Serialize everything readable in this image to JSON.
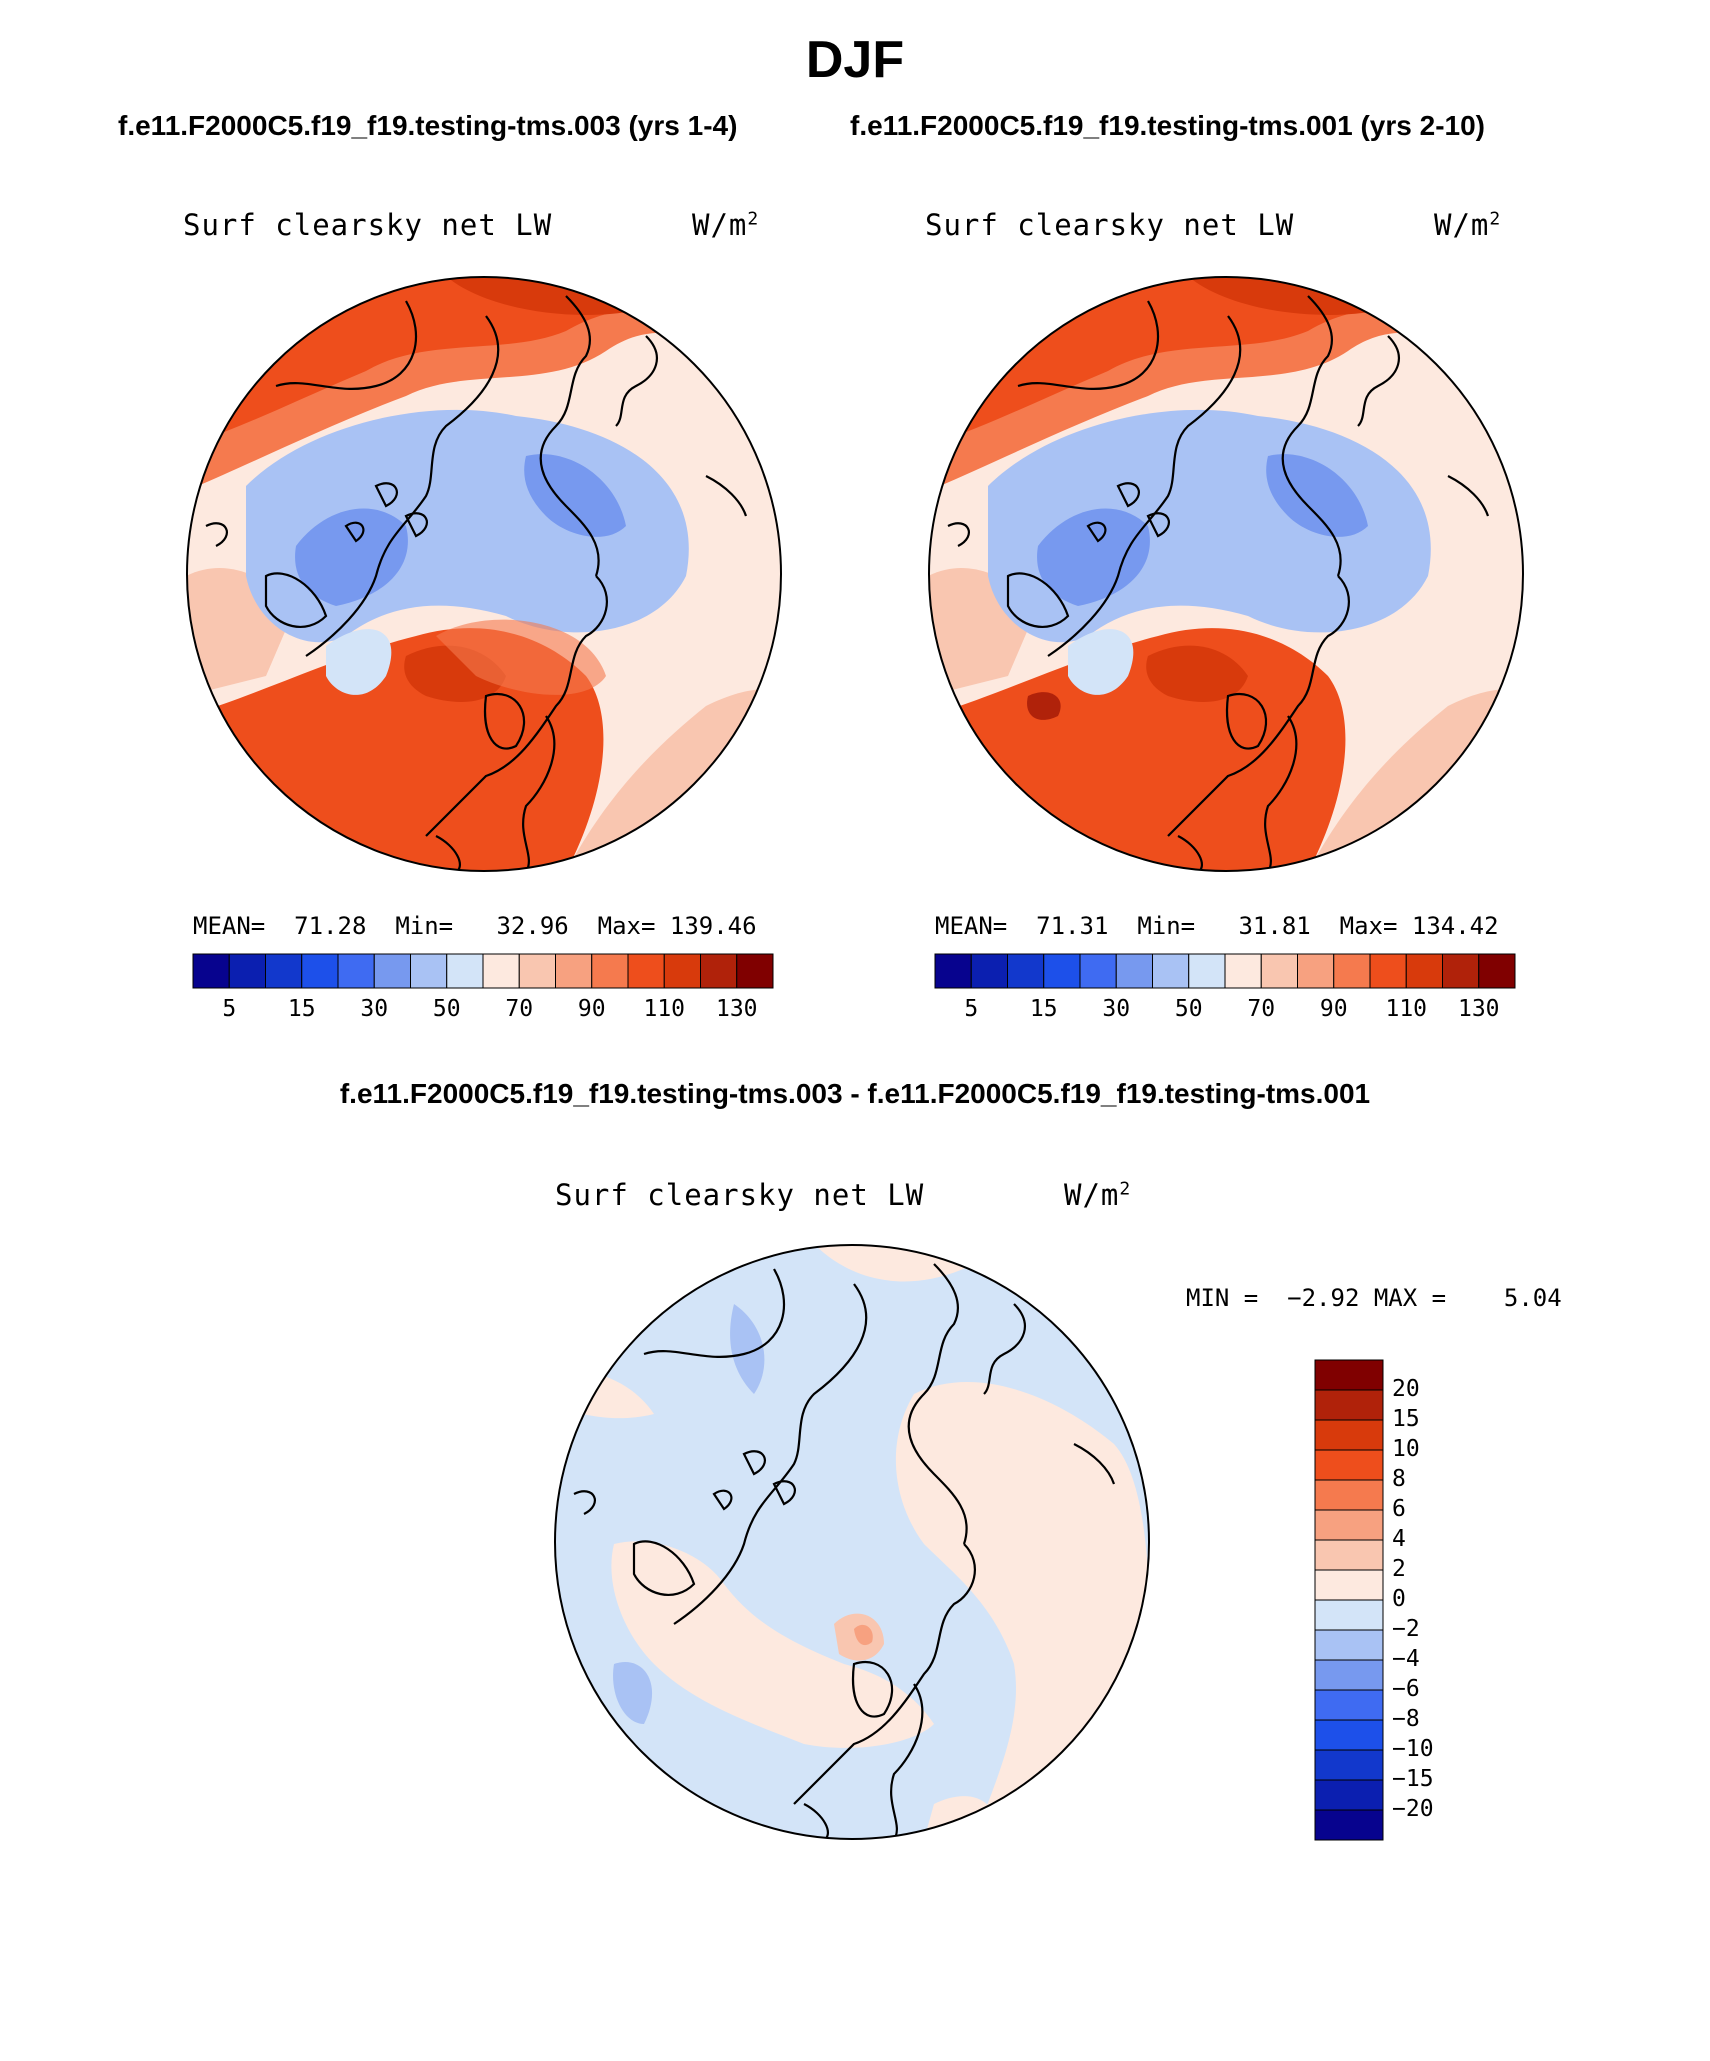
{
  "title": "DJF",
  "case_titles": {
    "left": "f.e11.F2000C5.f19_f19.testing-tms.003 (yrs 1-4)",
    "right": "f.e11.F2000C5.f19_f19.testing-tms.001 (yrs 2-10)"
  },
  "diff_title": "f.e11.F2000C5.f19_f19.testing-tms.003 - f.e11.F2000C5.f19_f19.testing-tms.001",
  "colors": {
    "abs_scale": [
      "#07038e",
      "#0b1fb0",
      "#1238cc",
      "#1d50ea",
      "#3f6bf2",
      "#7799ef",
      "#a9c2f4",
      "#d3e4f8",
      "#fde9df",
      "#f9c6b0",
      "#f7a180",
      "#f57a4e",
      "#ee4e1c",
      "#d83a0c",
      "#b0220a",
      "#800000"
    ],
    "diff_scale": [
      "#07038e",
      "#0b1fb0",
      "#1238cc",
      "#1d50ea",
      "#3f6bf2",
      "#7799ef",
      "#a9c2f4",
      "#d3e4f8",
      "#fde9df",
      "#f9c6b0",
      "#f7a180",
      "#f57a4e",
      "#ee4e1c",
      "#d83a0c",
      "#b0220a",
      "#800000"
    ]
  },
  "chart_data": [
    {
      "type": "heatmap",
      "projection": "polar-stereographic (north)",
      "variable": "Surf clearsky net LW",
      "units": "W/m2",
      "units_base": "W/m",
      "units_exp": "2",
      "case": "f.e11.F2000C5.f19_f19.testing-tms.003 (yrs 1-4)",
      "stats": {
        "mean_label": "MEAN=",
        "mean": "71.28",
        "min_label": "Min=",
        "min": "32.96",
        "max_label": "Max=",
        "max": "139.46"
      },
      "colorbar": {
        "levels": [
          5,
          10,
          15,
          20,
          30,
          40,
          50,
          60,
          70,
          80,
          90,
          100,
          110,
          120,
          130
        ],
        "labels": [
          "5",
          "15",
          "30",
          "50",
          "70",
          "90",
          "110",
          "130"
        ]
      }
    },
    {
      "type": "heatmap",
      "projection": "polar-stereographic (north)",
      "variable": "Surf clearsky net LW",
      "units": "W/m2",
      "units_base": "W/m",
      "units_exp": "2",
      "case": "f.e11.F2000C5.f19_f19.testing-tms.001 (yrs 2-10)",
      "stats": {
        "mean_label": "MEAN=",
        "mean": "71.31",
        "min_label": "Min=",
        "min": "31.81",
        "max_label": "Max=",
        "max": "134.42"
      },
      "colorbar": {
        "levels": [
          5,
          10,
          15,
          20,
          30,
          40,
          50,
          60,
          70,
          80,
          90,
          100,
          110,
          120,
          130
        ],
        "labels": [
          "5",
          "15",
          "30",
          "50",
          "70",
          "90",
          "110",
          "130"
        ]
      }
    },
    {
      "type": "heatmap",
      "projection": "polar-stereographic (north)",
      "variable": "Surf clearsky net LW",
      "units": "W/m2",
      "units_base": "W/m",
      "units_exp": "2",
      "case": "difference",
      "stats": {
        "min_label": "MIN =",
        "min": "−2.92",
        "max_label": "MAX =",
        "max": "5.04"
      },
      "colorbar": {
        "levels": [
          -20,
          -15,
          -10,
          -8,
          -6,
          -4,
          -2,
          0,
          2,
          4,
          6,
          8,
          10,
          15,
          20
        ],
        "labels": [
          "20",
          "15",
          "10",
          "8",
          "6",
          "4",
          "2",
          "0",
          "−2",
          "−4",
          "−6",
          "−8",
          "−10",
          "−15",
          "−20"
        ]
      }
    }
  ]
}
